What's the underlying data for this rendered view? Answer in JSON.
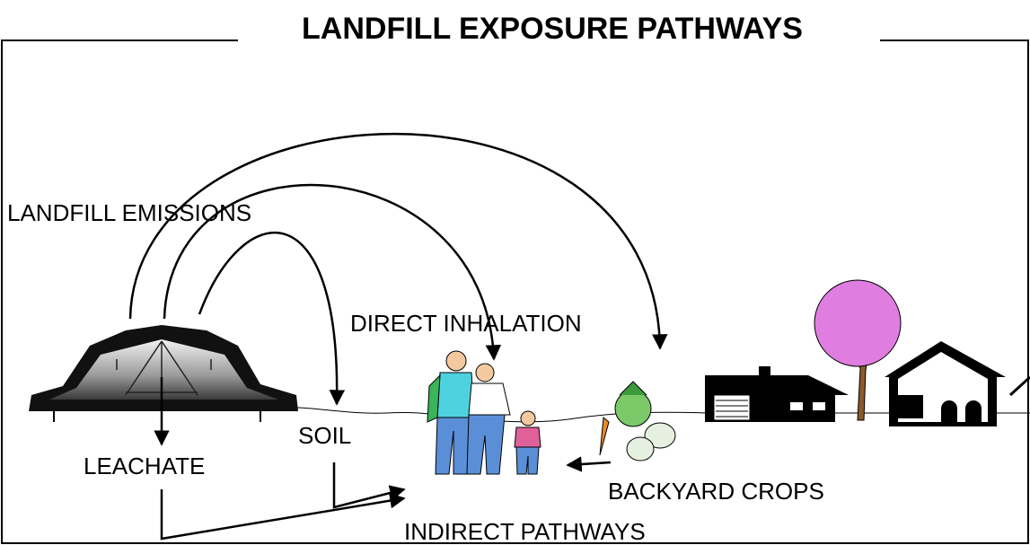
{
  "header": {
    "title": "LANDFILL EXPOSURE PATHWAYS"
  },
  "labels": {
    "emissions": "LANDFILL EMISSIONS",
    "inhalation": "DIRECT INHALATION",
    "soil": "SOIL",
    "leachate": "LEACHATE",
    "crops": "BACKYARD CROPS",
    "indirect": "INDIRECT PATHWAYS"
  }
}
